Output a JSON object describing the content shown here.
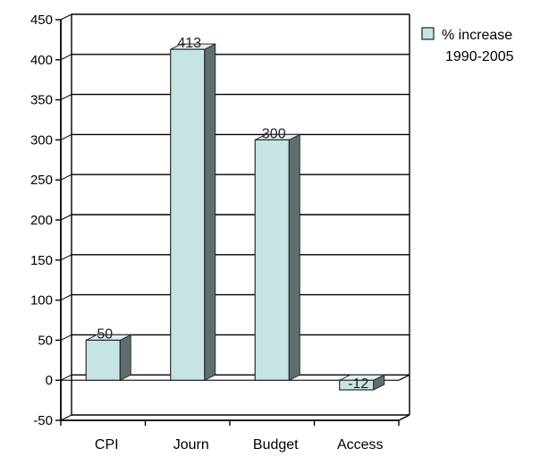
{
  "chart_data": {
    "type": "bar",
    "categories": [
      "CPI",
      "Journ",
      "Budget",
      "Access"
    ],
    "series": [
      {
        "name": "% increase 1990-2005",
        "values": [
          50,
          413,
          300,
          -12
        ]
      }
    ],
    "data_labels": [
      "50",
      "413",
      "300",
      "-12"
    ],
    "ylim": [
      -50,
      450
    ],
    "yticks": [
      -50,
      0,
      50,
      100,
      150,
      200,
      250,
      300,
      350,
      400,
      450
    ],
    "title": "",
    "xlabel": "",
    "ylabel": "",
    "grid": true,
    "legend_position": "right",
    "style": "3d"
  },
  "legend": {
    "line1": "% increase",
    "line2": "1990-2005"
  },
  "colors": {
    "bar_front": "#c6e4e4",
    "bar_side": "#5f6f6f",
    "bar_top": "#dff0f0",
    "bar_stroke": "#2a2a2a",
    "grid": "#000000",
    "floor": "#ffffff"
  }
}
